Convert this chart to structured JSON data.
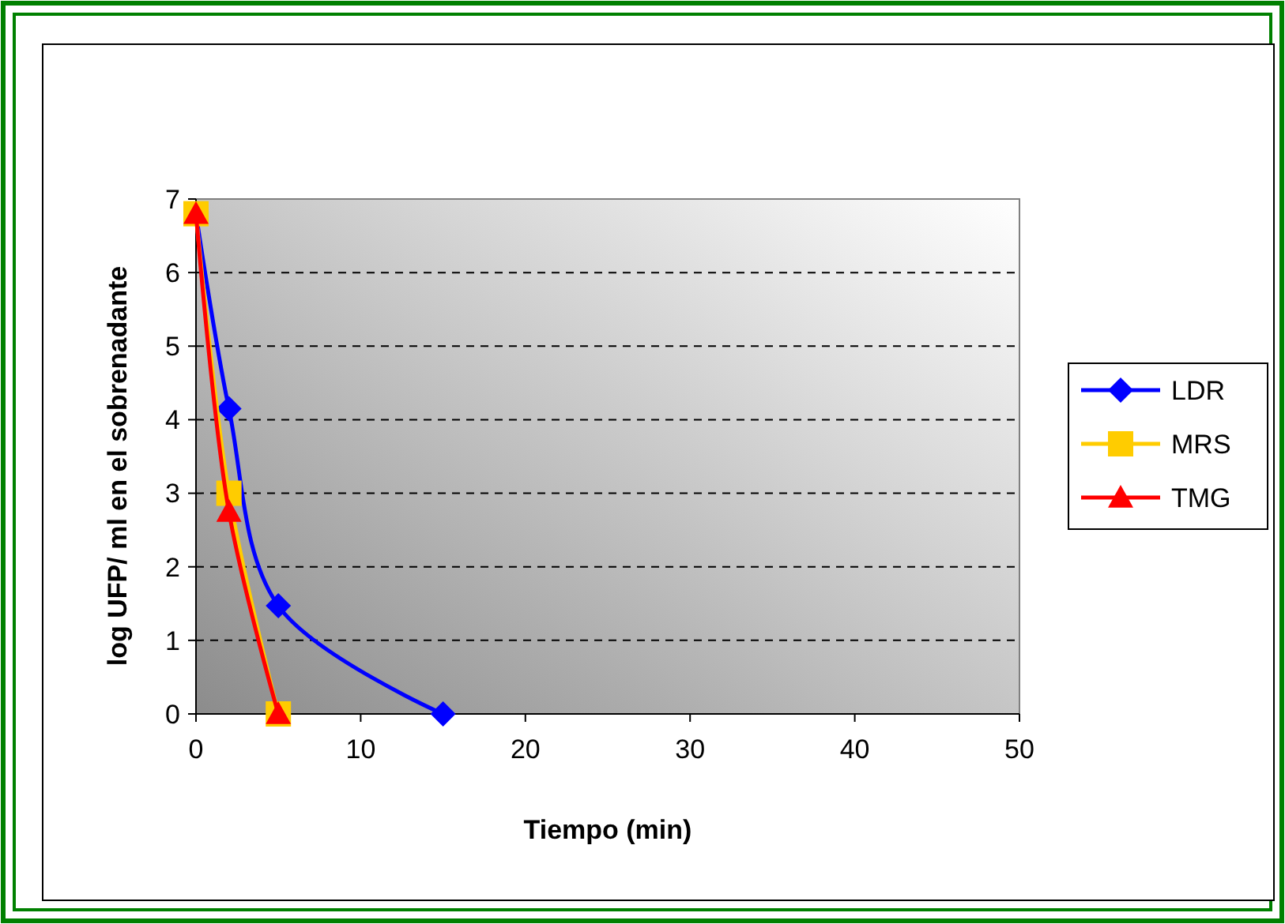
{
  "chart_data": {
    "type": "line",
    "xlabel": "Tiempo (min)",
    "ylabel": "log UFP/ ml en el sobrenadante",
    "xlim": [
      0,
      50
    ],
    "xticks": [
      0,
      10,
      20,
      30,
      40,
      50
    ],
    "ylim": [
      0,
      7
    ],
    "yticks": [
      0,
      1,
      2,
      3,
      4,
      5,
      6,
      7
    ],
    "grid": "y",
    "legend": "right",
    "line_style": "solid",
    "series": [
      {
        "name": "LDR",
        "color": "#0000ff",
        "marker": "diamond",
        "x": [
          0,
          2,
          5,
          15
        ],
        "values": [
          6.8,
          4.15,
          1.47,
          0
        ]
      },
      {
        "name": "MRS",
        "color": "#ffcc00",
        "marker": "square",
        "x": [
          0,
          2,
          5
        ],
        "values": [
          6.8,
          3.0,
          0
        ]
      },
      {
        "name": "TMG",
        "color": "#ff0000",
        "marker": "triangle",
        "x": [
          0,
          2,
          5
        ],
        "values": [
          6.8,
          2.75,
          0
        ]
      }
    ]
  }
}
